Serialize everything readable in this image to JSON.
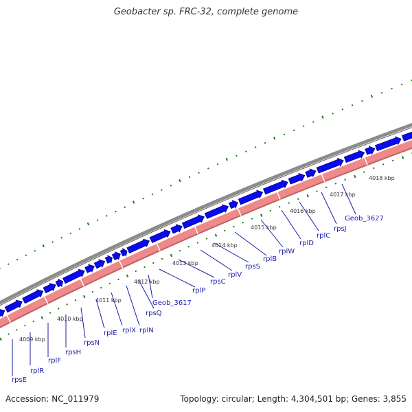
{
  "title": "Geobacter sp. FRC-32, complete genome",
  "accession": "Accession: NC_011979",
  "summary": "Topology: circular; Length: 4,304,501 bp; Genes: 3,855",
  "colors": {
    "backbone": "#8c8c8c",
    "gene_fill": "#0a0af0",
    "gene_stroke": "#000080",
    "gc_band": "#ee8a8a",
    "gc_band_dark": "#c06060",
    "tick_green": "#1a7a1a",
    "label_color": "#1a1aa8"
  },
  "scale_ticks": [
    "4009 kbp",
    "4010 kbp",
    "4011 kbp",
    "4012 kbp",
    "4013 kbp",
    "4014 kbp",
    "4015 kbp",
    "4016 kbp",
    "4017 kbp",
    "4018 kbp"
  ],
  "gene_labels": [
    "rpsE",
    "rplR",
    "rplF",
    "rpsH",
    "rpsN",
    "rplE",
    "rplX",
    "rplN",
    "rpsQ",
    "Geob_3617",
    "rplP",
    "rpsC",
    "rplV",
    "rpsS",
    "rplB",
    "rplW",
    "rplD",
    "rplC",
    "rpsJ",
    "Geob_3627"
  ]
}
